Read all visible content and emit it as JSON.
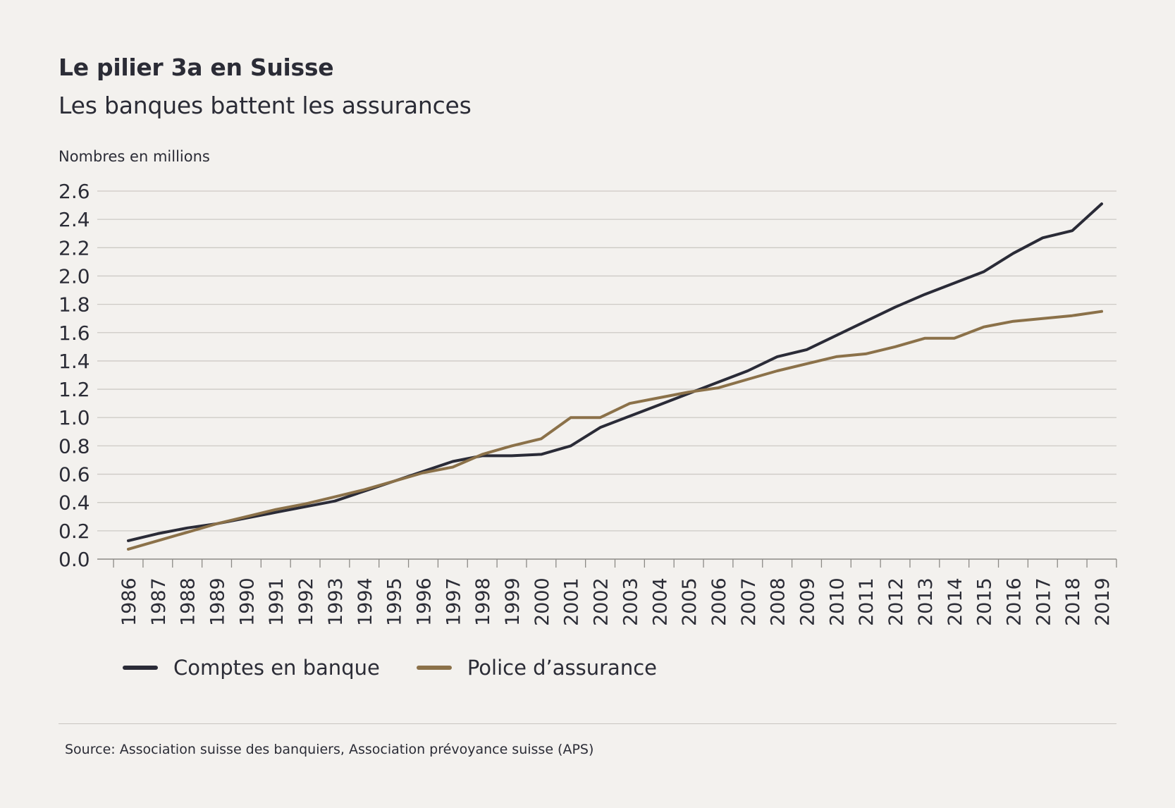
{
  "header": {
    "title": "Le pilier 3a en Suisse",
    "subtitle": "Les banques battent les assurances",
    "units": "Nombres en millions"
  },
  "legend": {
    "banks": "Comptes en banque",
    "insurance": "Police d’assurance"
  },
  "footer": {
    "source": "Source: Association suisse des banquiers, Association prévoyance suisse (APS)"
  },
  "colors": {
    "banks": "#2a2b37",
    "insurance": "#8b7149",
    "grid": "#cdcac5",
    "text": "#2b2c36"
  },
  "chart_data": {
    "type": "line",
    "categories": [
      "1986",
      "1987",
      "1988",
      "1989",
      "1990",
      "1991",
      "1992",
      "1993",
      "1994",
      "1995",
      "1996",
      "1997",
      "1998",
      "1999",
      "2000",
      "2001",
      "2002",
      "2003",
      "2004",
      "2005",
      "2006",
      "2007",
      "2008",
      "2009",
      "2010",
      "2011",
      "2012",
      "2013",
      "2014",
      "2015",
      "2016",
      "2017",
      "2018",
      "2019"
    ],
    "series": [
      {
        "name": "Comptes en banque",
        "values": [
          0.13,
          0.18,
          0.22,
          0.25,
          0.29,
          0.33,
          0.37,
          0.41,
          0.48,
          0.55,
          0.62,
          0.69,
          0.73,
          0.73,
          0.74,
          0.8,
          0.93,
          1.01,
          1.09,
          1.17,
          1.25,
          1.33,
          1.43,
          1.48,
          1.58,
          1.68,
          1.78,
          1.87,
          1.95,
          2.03,
          2.16,
          2.27,
          2.32,
          2.51
        ]
      },
      {
        "name": "Police d’assurance",
        "values": [
          0.07,
          0.13,
          0.19,
          0.25,
          0.3,
          0.35,
          0.39,
          0.44,
          0.49,
          0.55,
          0.61,
          0.65,
          0.74,
          0.8,
          0.85,
          1.0,
          1.0,
          1.1,
          1.14,
          1.18,
          1.21,
          1.27,
          1.33,
          1.38,
          1.43,
          1.45,
          1.5,
          1.56,
          1.56,
          1.64,
          1.68,
          1.7,
          1.72,
          1.75
        ]
      }
    ],
    "yticks": [
      "0.0",
      "0.2",
      "0.4",
      "0.6",
      "0.8",
      "1.0",
      "1.2",
      "1.4",
      "1.6",
      "1.8",
      "2.0",
      "2.2",
      "2.4",
      "2.6"
    ],
    "ylim": [
      0,
      2.6
    ],
    "grid": true,
    "legend_position": "bottom-left"
  }
}
